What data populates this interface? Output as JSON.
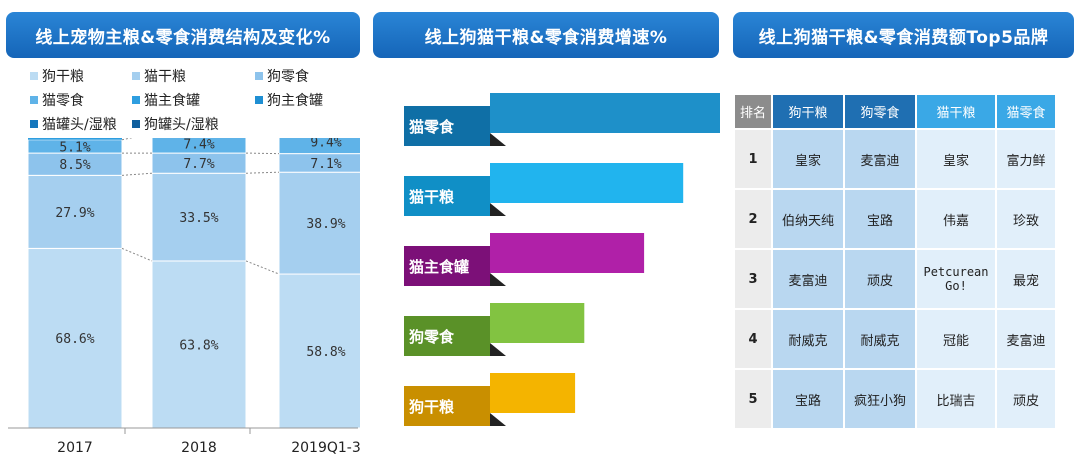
{
  "headers": {
    "panel1": "线上宠物主粮&零食消费结构及变化%",
    "panel2": "线上狗猫干粮&零食消费增速%",
    "panel3": "线上狗猫干粮&零食消费额Top5品牌"
  },
  "legend": [
    {
      "label": "狗干粮",
      "color": "#bcdcf3"
    },
    {
      "label": "猫干粮",
      "color": "#a5cfef"
    },
    {
      "label": "狗零食",
      "color": "#8dc3ec"
    },
    {
      "label": "猫零食",
      "color": "#5fb3e8"
    },
    {
      "label": "猫主食罐",
      "color": "#2e9ee0"
    },
    {
      "label": "狗主食罐",
      "color": "#1f8fd3"
    },
    {
      "label": "猫罐头/湿粮",
      "color": "#1477bd"
    },
    {
      "label": "狗罐头/湿粮",
      "color": "#0f5f9e"
    }
  ],
  "chart_data": [
    {
      "type": "bar",
      "stacked": true,
      "title": "线上宠物主粮&零食消费结构及变化%",
      "categories": [
        "2017",
        "2018",
        "2019Q1-3"
      ],
      "series": [
        {
          "name": "狗干粮",
          "values": [
            68.6,
            63.8,
            58.8
          ],
          "labels": [
            "68.6%",
            "63.8%",
            "58.8%"
          ]
        },
        {
          "name": "猫干粮",
          "values": [
            27.9,
            33.5,
            38.9
          ],
          "labels": [
            "27.9%",
            "33.5%",
            "38.9%"
          ]
        },
        {
          "name": "狗零食",
          "values": [
            8.5,
            7.7,
            7.1
          ],
          "labels": [
            "8.5%",
            "7.7%",
            "7.1%"
          ]
        },
        {
          "name": "猫零食",
          "values": [
            5.1,
            7.4,
            9.4
          ],
          "labels": [
            "5.1%",
            "7.4%",
            "9.4%"
          ]
        }
      ],
      "ylim": [
        0,
        110
      ]
    },
    {
      "type": "bar",
      "orientation": "horizontal",
      "title": "线上狗猫干粮&零食消费增速%",
      "categories": [
        "猫零食",
        "猫干粮",
        "猫主食罐",
        "狗零食",
        "狗干粮"
      ],
      "colors": [
        "#1e90c9",
        "#21b4ee",
        "#b020a8",
        "#82c341",
        "#f4b400"
      ],
      "values": [
        100,
        84,
        67,
        41,
        37
      ]
    }
  ],
  "table": {
    "headers": [
      "排名",
      "狗干粮",
      "狗零食",
      "猫干粮",
      "猫零食"
    ],
    "rows": [
      [
        "1",
        "皇家",
        "麦富迪",
        "皇家",
        "富力鲜"
      ],
      [
        "2",
        "伯纳天纯",
        "宝路",
        "伟嘉",
        "珍致"
      ],
      [
        "3",
        "麦富迪",
        "顽皮",
        "Petcurean Go!",
        "最宠"
      ],
      [
        "4",
        "耐威克",
        "耐威克",
        "冠能",
        "麦富迪"
      ],
      [
        "5",
        "宝路",
        "疯狂小狗",
        "比瑞吉",
        "顽皮"
      ]
    ]
  }
}
